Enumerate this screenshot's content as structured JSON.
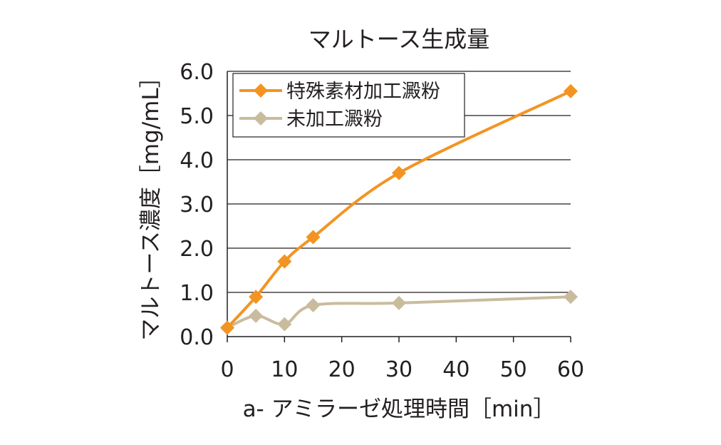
{
  "chart_data": {
    "type": "line",
    "title": "マルトース生成量",
    "xlabel": "a- アミラーゼ処理時間［min］",
    "ylabel": "マルトース濃度［mg/mL］",
    "x": [
      0,
      5,
      10,
      15,
      30,
      60
    ],
    "xticks": [
      "0",
      "10",
      "20",
      "30",
      "40",
      "50",
      "60"
    ],
    "xtick_values": [
      0,
      10,
      20,
      30,
      40,
      50,
      60
    ],
    "yticks": [
      "0.0",
      "1.0",
      "2.0",
      "3.0",
      "4.0",
      "5.0",
      "6.0"
    ],
    "ytick_values": [
      0,
      1,
      2,
      3,
      4,
      5,
      6
    ],
    "xlim": [
      0,
      60
    ],
    "ylim": [
      0,
      6
    ],
    "grid": "horizontal",
    "legend_position": "top-left",
    "series": [
      {
        "name": "特殊素材加工澱粉",
        "color": "#f39422",
        "marker": "diamond",
        "values": [
          0.2,
          0.9,
          1.7,
          2.25,
          3.7,
          5.55
        ]
      },
      {
        "name": "未加工澱粉",
        "color": "#c9bc9e",
        "marker": "diamond",
        "values": [
          0.2,
          0.47,
          0.28,
          0.71,
          0.76,
          0.9
        ]
      }
    ]
  }
}
